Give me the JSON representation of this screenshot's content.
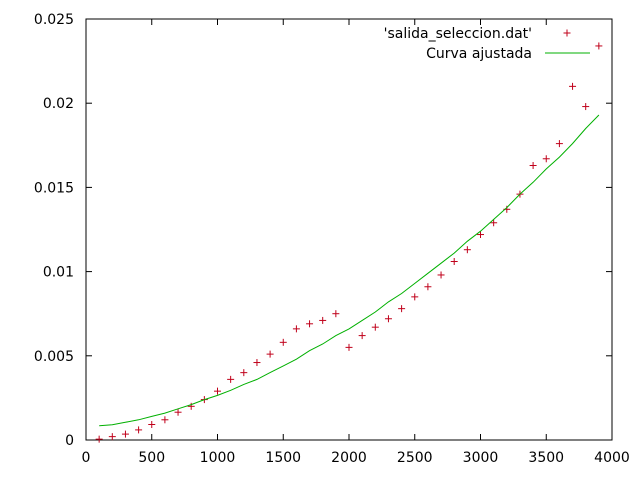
{
  "chart_data": {
    "type": "scatter",
    "xlim": [
      0,
      4000
    ],
    "ylim": [
      0,
      0.025
    ],
    "xticks": [
      "0",
      "500",
      "1000",
      "1500",
      "2000",
      "2500",
      "3000",
      "3500",
      "4000"
    ],
    "yticks": [
      "0",
      "0.005",
      "0.01",
      "0.015",
      "0.02",
      "0.025"
    ],
    "grid": false,
    "legend_position": "top-right",
    "series": [
      {
        "name": "'salida_seleccion.dat'",
        "marker": "plus",
        "color": "#c0001a",
        "x": [
          100,
          200,
          300,
          400,
          500,
          600,
          700,
          800,
          900,
          1000,
          1100,
          1200,
          1300,
          1400,
          1500,
          1600,
          1700,
          1800,
          1900,
          2000,
          2100,
          2200,
          2300,
          2400,
          2500,
          2600,
          2700,
          2800,
          2900,
          3000,
          3100,
          3200,
          3300,
          3400,
          3500,
          3600,
          3700,
          3800,
          3900
        ],
        "y": [
          5e-05,
          0.0002,
          0.00035,
          0.0006,
          0.00092,
          0.0012,
          0.00165,
          0.002,
          0.0024,
          0.0029,
          0.0036,
          0.004,
          0.0046,
          0.0051,
          0.0058,
          0.0066,
          0.0069,
          0.0071,
          0.0075,
          0.0055,
          0.0062,
          0.0067,
          0.0072,
          0.0078,
          0.0085,
          0.0091,
          0.0098,
          0.0106,
          0.0113,
          0.0122,
          0.0129,
          0.0137,
          0.0146,
          0.0163,
          0.0167,
          0.0176,
          0.021,
          0.0198,
          0.0234
        ]
      },
      {
        "name": "Curva ajustada",
        "marker": "line",
        "color": "#00b000",
        "x": [
          100,
          200,
          300,
          400,
          500,
          600,
          700,
          800,
          900,
          1000,
          1100,
          1200,
          1300,
          1400,
          1500,
          1600,
          1700,
          1800,
          1900,
          2000,
          2100,
          2200,
          2300,
          2400,
          2500,
          2600,
          2700,
          2800,
          2900,
          3000,
          3100,
          3200,
          3300,
          3400,
          3500,
          3600,
          3700,
          3800,
          3900
        ],
        "y": [
          0.00085,
          0.0009,
          0.00105,
          0.0012,
          0.0014,
          0.0016,
          0.00185,
          0.0021,
          0.0024,
          0.00265,
          0.00295,
          0.0033,
          0.0036,
          0.004,
          0.0044,
          0.0048,
          0.0053,
          0.0057,
          0.0062,
          0.0066,
          0.0071,
          0.0076,
          0.0082,
          0.0087,
          0.0093,
          0.0099,
          0.0105,
          0.0111,
          0.0118,
          0.0124,
          0.0131,
          0.0138,
          0.0146,
          0.0153,
          0.0161,
          0.0168,
          0.0176,
          0.0185,
          0.0193
        ]
      }
    ]
  }
}
